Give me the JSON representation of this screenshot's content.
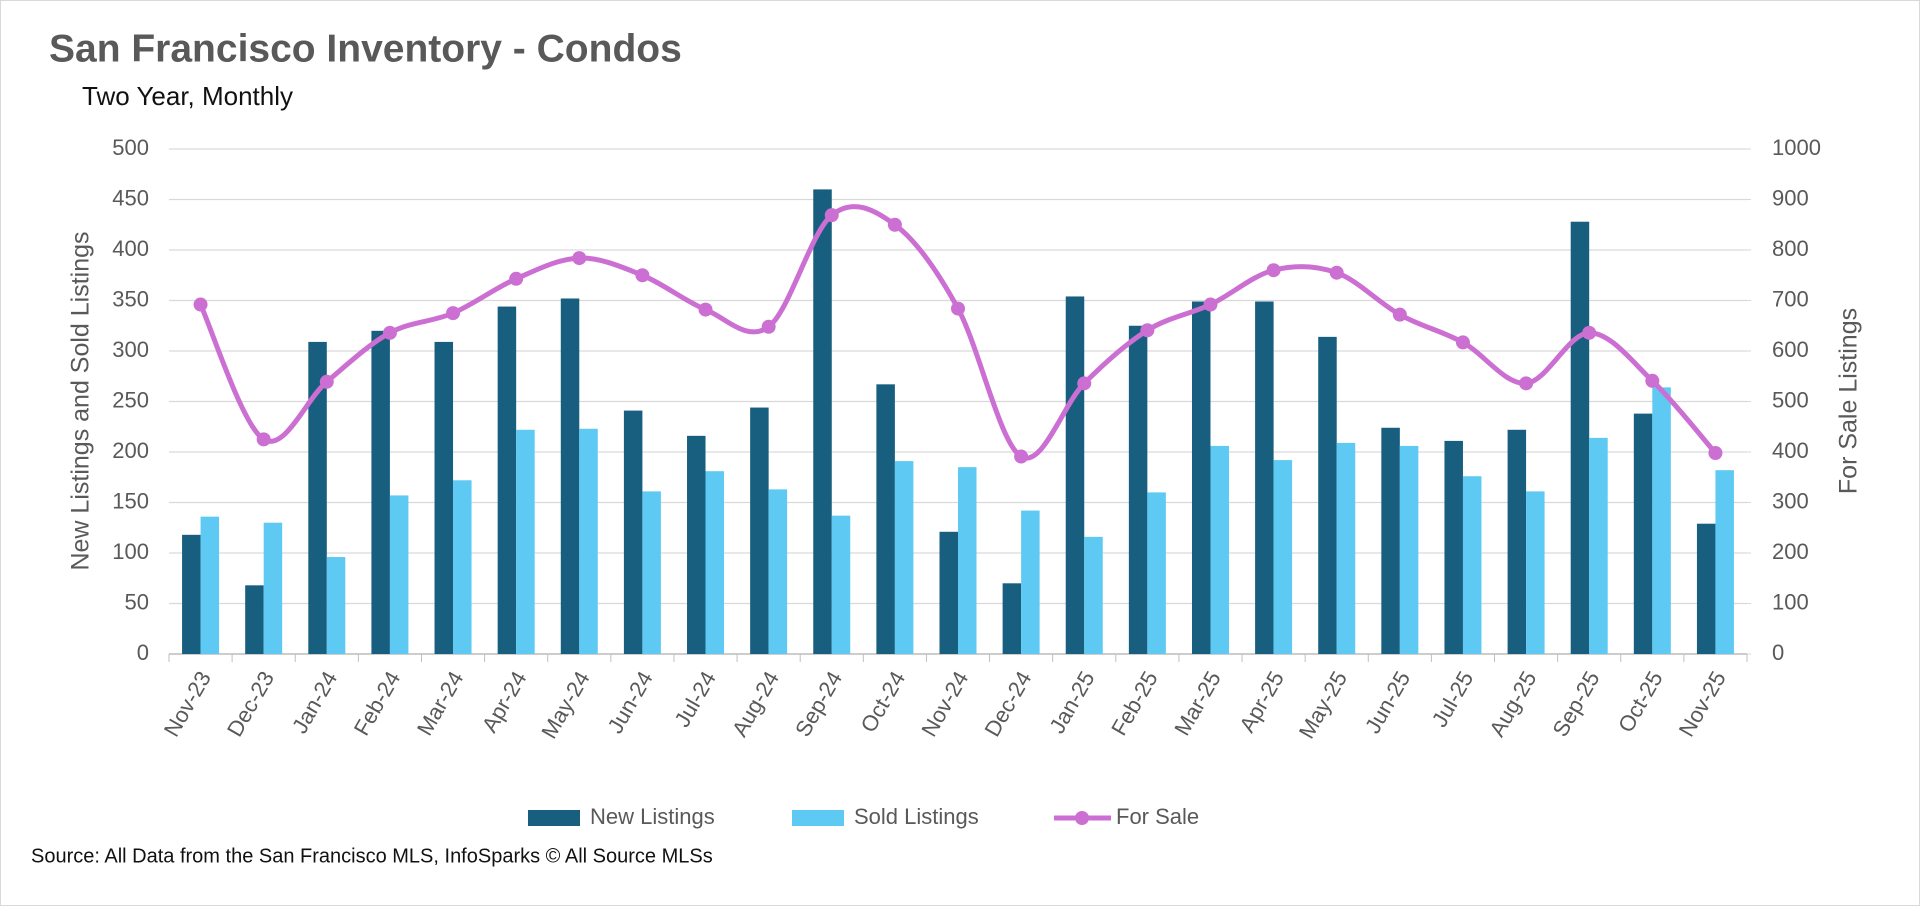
{
  "chart_data": {
    "type": "combo",
    "title": "San Francisco Inventory - Condos",
    "subtitle": "Two Year, Monthly",
    "y_label": "New Listings and Sold Listings",
    "y2_label": "For Sale Listings",
    "source": "Source: All Data from the San Francisco MLS, InfoSparks © All Source MLSs",
    "categories": [
      "Nov-23",
      "Dec-23",
      "Jan-24",
      "Feb-24",
      "Mar-24",
      "Apr-24",
      "May-24",
      "Jun-24",
      "Jul-24",
      "Aug-24",
      "Sep-24",
      "Oct-24",
      "Nov-24",
      "Dec-24",
      "Jan-25",
      "Feb-25",
      "Mar-25",
      "Apr-25",
      "May-25",
      "Jun-25",
      "Jul-25",
      "Aug-25",
      "Sep-25",
      "Oct-25",
      "Nov-25"
    ],
    "series": [
      {
        "name": "New Listings",
        "type": "bar",
        "color": "#185f7f",
        "values": [
          118,
          68,
          309,
          320,
          309,
          344,
          352,
          241,
          216,
          244,
          460,
          267,
          121,
          70,
          354,
          325,
          349,
          349,
          314,
          224,
          211,
          222,
          428,
          238,
          129
        ]
      },
      {
        "name": "Sold Listings",
        "type": "bar",
        "color": "#5ec9f2",
        "values": [
          136,
          130,
          96,
          157,
          172,
          222,
          223,
          161,
          181,
          163,
          137,
          191,
          185,
          142,
          116,
          160,
          206,
          192,
          209,
          206,
          176,
          161,
          214,
          264,
          182
        ]
      },
      {
        "name": "For Sale",
        "type": "line",
        "axis": "y2",
        "color": "#cc6fd2",
        "values": [
          692,
          425,
          539,
          636,
          675,
          743,
          784,
          750,
          682,
          648,
          869,
          850,
          684,
          391,
          536,
          641,
          692,
          760,
          755,
          672,
          617,
          536,
          636,
          541,
          398
        ]
      }
    ],
    "ylim": [
      0,
      500
    ],
    "yticks": [
      0,
      50,
      100,
      150,
      200,
      250,
      300,
      350,
      400,
      450,
      500
    ],
    "y2lim": [
      0,
      1000
    ],
    "y2ticks": [
      0,
      100,
      200,
      300,
      400,
      500,
      600,
      700,
      800,
      900,
      1000
    ],
    "grid": true
  }
}
